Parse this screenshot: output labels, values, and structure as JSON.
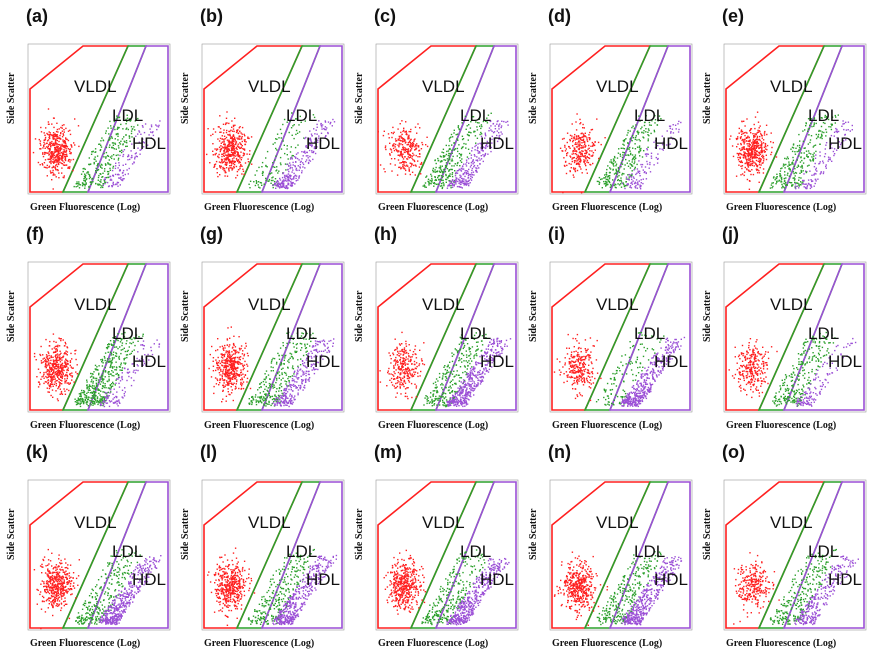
{
  "axis_labels": {
    "y": "Side Scatter",
    "x": "Green Fluorescence (Log)"
  },
  "gates": [
    "VLDL",
    "LDL",
    "HDL"
  ],
  "colors": {
    "vldl": "#ff2020",
    "ldl": "#2ca02c",
    "hdl": "#9b4fd6",
    "frame": "#999999"
  },
  "chart_data": [
    {
      "type": "scatter",
      "panel": "(a)",
      "populations": [
        {
          "name": "VLDL",
          "density": "high"
        },
        {
          "name": "LDL",
          "density": "medium"
        },
        {
          "name": "HDL",
          "density": "low"
        }
      ]
    },
    {
      "type": "scatter",
      "panel": "(b)",
      "populations": [
        {
          "name": "VLDL",
          "density": "high"
        },
        {
          "name": "LDL",
          "density": "low"
        },
        {
          "name": "HDL",
          "density": "medium"
        }
      ]
    },
    {
      "type": "scatter",
      "panel": "(c)",
      "populations": [
        {
          "name": "VLDL",
          "density": "medium"
        },
        {
          "name": "LDL",
          "density": "medium"
        },
        {
          "name": "HDL",
          "density": "medium"
        }
      ]
    },
    {
      "type": "scatter",
      "panel": "(d)",
      "populations": [
        {
          "name": "VLDL",
          "density": "medium"
        },
        {
          "name": "LDL",
          "density": "medium"
        },
        {
          "name": "HDL",
          "density": "low"
        }
      ]
    },
    {
      "type": "scatter",
      "panel": "(e)",
      "populations": [
        {
          "name": "VLDL",
          "density": "high"
        },
        {
          "name": "LDL",
          "density": "medium"
        },
        {
          "name": "HDL",
          "density": "low"
        }
      ]
    },
    {
      "type": "scatter",
      "panel": "(f)",
      "populations": [
        {
          "name": "VLDL",
          "density": "high"
        },
        {
          "name": "LDL",
          "density": "high"
        },
        {
          "name": "HDL",
          "density": "low"
        }
      ]
    },
    {
      "type": "scatter",
      "panel": "(g)",
      "populations": [
        {
          "name": "VLDL",
          "density": "high"
        },
        {
          "name": "LDL",
          "density": "medium"
        },
        {
          "name": "HDL",
          "density": "medium"
        }
      ]
    },
    {
      "type": "scatter",
      "panel": "(h)",
      "populations": [
        {
          "name": "VLDL",
          "density": "medium"
        },
        {
          "name": "LDL",
          "density": "medium"
        },
        {
          "name": "HDL",
          "density": "high"
        }
      ]
    },
    {
      "type": "scatter",
      "panel": "(i)",
      "populations": [
        {
          "name": "VLDL",
          "density": "medium"
        },
        {
          "name": "LDL",
          "density": "low"
        },
        {
          "name": "HDL",
          "density": "high"
        }
      ]
    },
    {
      "type": "scatter",
      "panel": "(j)",
      "populations": [
        {
          "name": "VLDL",
          "density": "medium"
        },
        {
          "name": "LDL",
          "density": "medium"
        },
        {
          "name": "HDL",
          "density": "low"
        }
      ]
    },
    {
      "type": "scatter",
      "panel": "(k)",
      "populations": [
        {
          "name": "VLDL",
          "density": "high"
        },
        {
          "name": "LDL",
          "density": "medium"
        },
        {
          "name": "HDL",
          "density": "high"
        }
      ]
    },
    {
      "type": "scatter",
      "panel": "(l)",
      "populations": [
        {
          "name": "VLDL",
          "density": "high"
        },
        {
          "name": "LDL",
          "density": "medium"
        },
        {
          "name": "HDL",
          "density": "high"
        }
      ]
    },
    {
      "type": "scatter",
      "panel": "(m)",
      "populations": [
        {
          "name": "VLDL",
          "density": "high"
        },
        {
          "name": "LDL",
          "density": "medium"
        },
        {
          "name": "HDL",
          "density": "high"
        }
      ]
    },
    {
      "type": "scatter",
      "panel": "(n)",
      "populations": [
        {
          "name": "VLDL",
          "density": "high"
        },
        {
          "name": "LDL",
          "density": "medium"
        },
        {
          "name": "HDL",
          "density": "high"
        }
      ]
    },
    {
      "type": "scatter",
      "panel": "(o)",
      "populations": [
        {
          "name": "VLDL",
          "density": "medium"
        },
        {
          "name": "LDL",
          "density": "medium"
        },
        {
          "name": "HDL",
          "density": "medium"
        }
      ]
    }
  ]
}
